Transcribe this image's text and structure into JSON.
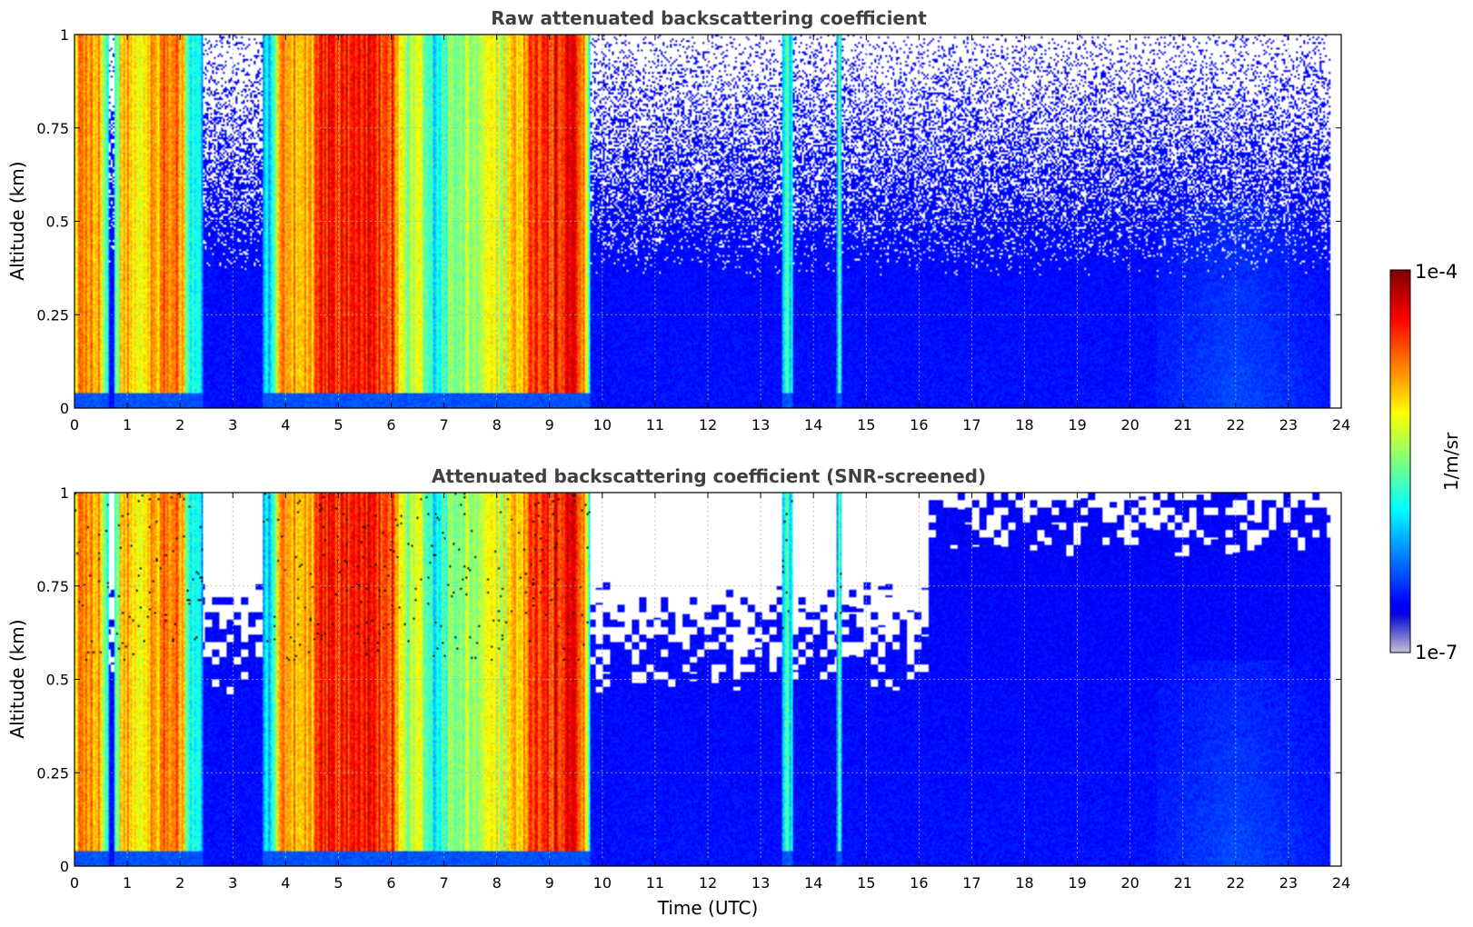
{
  "chart_data": [
    {
      "type": "heatmap",
      "title": "Raw attenuated backscattering coefficient",
      "xlabel": "",
      "ylabel": "Altitude (km)",
      "xlim": [
        0,
        24
      ],
      "ylim": [
        0,
        1
      ],
      "x_ticks": [
        "0",
        "1",
        "2",
        "3",
        "4",
        "5",
        "6",
        "7",
        "8",
        "9",
        "10",
        "11",
        "12",
        "13",
        "14",
        "15",
        "16",
        "17",
        "18",
        "19",
        "20",
        "21",
        "22",
        "23",
        "24"
      ],
      "y_ticks": [
        "0",
        "0.25",
        "0.5",
        "0.75",
        "1"
      ],
      "grid": true,
      "screened": false,
      "colorbar_label": "1/m/sr",
      "colorscale": "jet",
      "color_range": [
        1e-07,
        0.0001
      ]
    },
    {
      "type": "heatmap",
      "title": "Attenuated backscattering coefficient (SNR-screened)",
      "xlabel": "Time (UTC)",
      "ylabel": "Altitude (km)",
      "xlim": [
        0,
        24
      ],
      "ylim": [
        0,
        1
      ],
      "x_ticks": [
        "0",
        "1",
        "2",
        "3",
        "4",
        "5",
        "6",
        "7",
        "8",
        "9",
        "10",
        "11",
        "12",
        "13",
        "14",
        "15",
        "16",
        "17",
        "18",
        "19",
        "20",
        "21",
        "22",
        "23",
        "24"
      ],
      "y_ticks": [
        "0",
        "0.25",
        "0.5",
        "0.75",
        "1"
      ],
      "grid": true,
      "screened": true,
      "colorbar_label": "1/m/sr",
      "colorscale": "jet",
      "color_range": [
        1e-07,
        0.0001
      ]
    }
  ],
  "colorbar": {
    "label": "1/m/sr",
    "max_label": "1e-4",
    "min_label": "1e-7"
  },
  "data_extent_hours": 23.8,
  "signal_profile": [
    {
      "t": 0.0,
      "level": 0.7
    },
    {
      "t": 0.2,
      "level": 0.75
    },
    {
      "t": 0.5,
      "level": 0.7
    },
    {
      "t": 0.7,
      "level": 0.2
    },
    {
      "t": 0.9,
      "level": 0.7
    },
    {
      "t": 1.2,
      "level": 0.65
    },
    {
      "t": 1.6,
      "level": 0.72
    },
    {
      "t": 1.9,
      "level": 0.82
    },
    {
      "t": 2.2,
      "level": 0.45
    },
    {
      "t": 2.6,
      "level": 0.2
    },
    {
      "t": 3.3,
      "level": 0.2
    },
    {
      "t": 3.7,
      "level": 0.35
    },
    {
      "t": 3.9,
      "level": 0.72
    },
    {
      "t": 4.5,
      "level": 0.7
    },
    {
      "t": 4.7,
      "level": 0.85
    },
    {
      "t": 5.0,
      "level": 0.85
    },
    {
      "t": 5.6,
      "level": 0.85
    },
    {
      "t": 6.0,
      "level": 0.82
    },
    {
      "t": 6.2,
      "level": 0.55
    },
    {
      "t": 6.6,
      "level": 0.55
    },
    {
      "t": 6.8,
      "level": 0.35
    },
    {
      "t": 7.2,
      "level": 0.55
    },
    {
      "t": 7.5,
      "level": 0.55
    },
    {
      "t": 7.9,
      "level": 0.6
    },
    {
      "t": 8.2,
      "level": 0.6
    },
    {
      "t": 8.5,
      "level": 0.7
    },
    {
      "t": 8.8,
      "level": 0.85
    },
    {
      "t": 9.2,
      "level": 0.85
    },
    {
      "t": 9.5,
      "level": 0.85
    },
    {
      "t": 9.7,
      "level": 0.65
    },
    {
      "t": 9.8,
      "level": 0.15
    },
    {
      "t": 13.3,
      "level": 0.15
    },
    {
      "t": 13.5,
      "level": 0.4
    },
    {
      "t": 13.6,
      "level": 0.3
    },
    {
      "t": 13.7,
      "level": 0.15
    },
    {
      "t": 14.4,
      "level": 0.15
    },
    {
      "t": 14.5,
      "level": 0.45
    },
    {
      "t": 14.6,
      "level": 0.15
    },
    {
      "t": 23.8,
      "level": 0.13
    }
  ]
}
